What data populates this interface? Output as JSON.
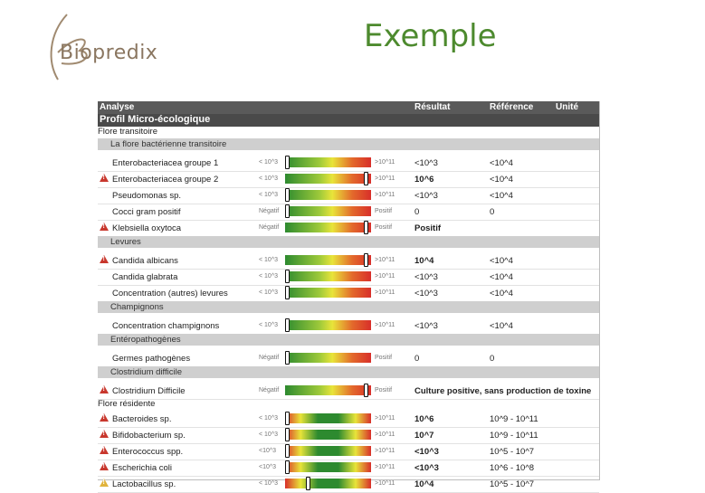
{
  "header": {
    "title": "Exemple",
    "logo_text": "Biopredix"
  },
  "report": {
    "columns": {
      "analyse": "Analyse",
      "resultat": "Résultat",
      "reference": "Référence",
      "unite": "Unité"
    },
    "profile_title": "Profil Micro-écologique",
    "rows": [
      {
        "kind": "section",
        "label": "Flore transitoire"
      },
      {
        "kind": "sub",
        "label": "La flore bactérienne transitoire"
      },
      {
        "kind": "item",
        "name": "Enterobacteriacea groupe 1",
        "warn": "",
        "lo": "< 10^3",
        "hi": ">10^11",
        "bar": "g1",
        "level": 0.0,
        "result": "<10^3",
        "bold": false,
        "ref": "<10^4"
      },
      {
        "kind": "item",
        "name": "Enterobacteriacea groupe 2",
        "warn": "red",
        "lo": "< 10^3",
        "hi": ">10^11",
        "bar": "g1",
        "level": 0.97,
        "result": "10^6",
        "bold": true,
        "ref": "<10^4"
      },
      {
        "kind": "item",
        "name": "Pseudomonas sp.",
        "warn": "",
        "lo": "< 10^3",
        "hi": ">10^11",
        "bar": "g1",
        "level": 0.0,
        "result": "<10^3",
        "bold": false,
        "ref": "<10^4"
      },
      {
        "kind": "item",
        "name": "Cocci gram positif",
        "warn": "",
        "lo": "Négatif",
        "hi": "Positif",
        "bar": "g1",
        "level": 0.0,
        "result": "0",
        "bold": false,
        "ref": "0"
      },
      {
        "kind": "item",
        "name": "Klebsiella oxytoca",
        "warn": "red",
        "lo": "Négatif",
        "hi": "Positif",
        "bar": "g1",
        "level": 0.97,
        "result": "Positif",
        "bold": true,
        "ref": ""
      },
      {
        "kind": "sub",
        "label": "Levures"
      },
      {
        "kind": "item",
        "name": "Candida albicans",
        "warn": "red",
        "lo": "< 10^3",
        "hi": ">10^11",
        "bar": "g1",
        "level": 0.97,
        "result": "10^4",
        "bold": true,
        "ref": "<10^4"
      },
      {
        "kind": "item",
        "name": "Candida glabrata",
        "warn": "",
        "lo": "< 10^3",
        "hi": ">10^11",
        "bar": "g1",
        "level": 0.0,
        "result": "<10^3",
        "bold": false,
        "ref": "<10^4"
      },
      {
        "kind": "item",
        "name": "Concentration (autres) levures",
        "warn": "",
        "lo": "< 10^3",
        "hi": ">10^11",
        "bar": "g1",
        "level": 0.0,
        "result": "<10^3",
        "bold": false,
        "ref": "<10^4"
      },
      {
        "kind": "sub",
        "label": "Champignons"
      },
      {
        "kind": "item",
        "name": "Concentration champignons",
        "warn": "",
        "lo": "< 10^3",
        "hi": ">10^11",
        "bar": "g1",
        "level": 0.0,
        "result": "<10^3",
        "bold": false,
        "ref": "<10^4"
      },
      {
        "kind": "sub",
        "label": "Entéropathogènes"
      },
      {
        "kind": "item",
        "name": "Germes pathogènes",
        "warn": "",
        "lo": "Négatif",
        "hi": "Positif",
        "bar": "g1",
        "level": 0.0,
        "result": "0",
        "bold": false,
        "ref": "0"
      },
      {
        "kind": "sub",
        "label": "Clostridium difficile"
      },
      {
        "kind": "item",
        "name": "Clostridium Difficile",
        "warn": "red",
        "lo": "Négatif",
        "hi": "Positif",
        "bar": "g1",
        "level": 0.97,
        "result": "Culture positive, sans production de toxine",
        "bold": true,
        "ref": ""
      },
      {
        "kind": "section",
        "label": "Flore résidente"
      },
      {
        "kind": "item",
        "name": "Bacteroides sp.",
        "warn": "red",
        "lo": "< 10^3",
        "hi": ">10^11",
        "bar": "g2",
        "level": 0.0,
        "result": "10^6",
        "bold": true,
        "ref": "10^9 - 10^11"
      },
      {
        "kind": "item",
        "name": "Bifidobacterium sp.",
        "warn": "red",
        "lo": "< 10^3",
        "hi": ">10^11",
        "bar": "g2",
        "level": 0.0,
        "result": "10^7",
        "bold": true,
        "ref": "10^9 - 10^11"
      },
      {
        "kind": "item",
        "name": "Enterococcus spp.",
        "warn": "red",
        "lo": "<10^3",
        "hi": ">10^11",
        "bar": "g2",
        "level": 0.0,
        "result": "<10^3",
        "bold": true,
        "ref": "10^5 - 10^7"
      },
      {
        "kind": "item",
        "name": "Escherichia coli",
        "warn": "red",
        "lo": "<10^3",
        "hi": ">10^11",
        "bar": "g2",
        "level": 0.0,
        "result": "<10^3",
        "bold": true,
        "ref": "10^6 - 10^8"
      },
      {
        "kind": "item",
        "name": "Lactobacillus sp.",
        "warn": "yellow",
        "lo": "< 10^3",
        "hi": ">10^11",
        "bar": "g2",
        "level": 0.24,
        "result": "10^4",
        "bold": true,
        "ref": "10^5 - 10^7"
      }
    ]
  }
}
